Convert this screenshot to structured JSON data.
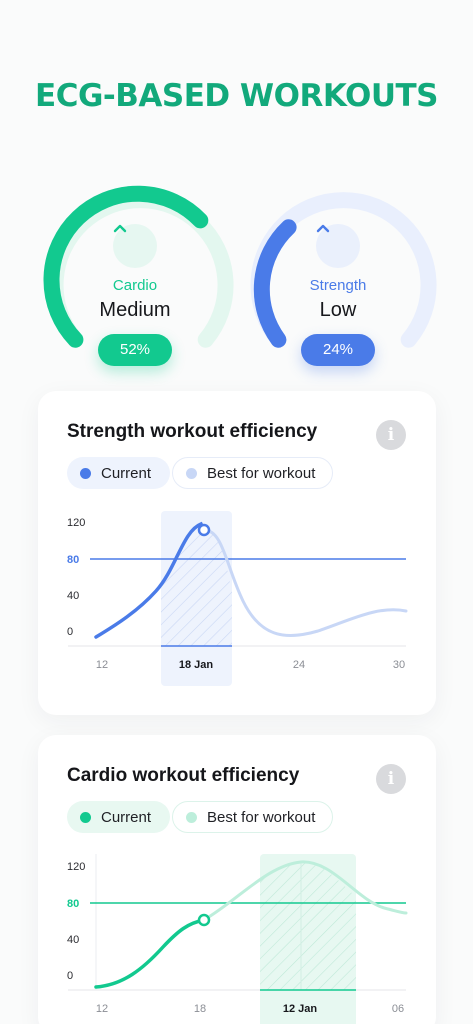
{
  "headline": "ECG-BASED WORKOUTS",
  "gauges": [
    {
      "label": "Cardio",
      "value": "Medium",
      "percent": "52%",
      "color": "#12c98f",
      "track": "#e3f7ef",
      "chip": "#e6f7f1"
    },
    {
      "label": "Strength",
      "value": "Low",
      "percent": "24%",
      "color": "#4a7be8",
      "track": "#e9effd",
      "chip": "#eaf0fc"
    }
  ],
  "strength_card": {
    "title": "Strength workout efficiency",
    "legend": {
      "current": "Current",
      "best": "Best for workout"
    },
    "colors": {
      "current": "#4a7be8",
      "best": "#c8d7f6",
      "band": "#eef3fd",
      "threshold": "#4a7be8"
    },
    "y_ticks": [
      "120",
      "80",
      "40",
      "0"
    ],
    "x_ticks": [
      "12",
      "18 Jan",
      "24",
      "30"
    ],
    "highlighted_tick": "18 Jan"
  },
  "cardio_card": {
    "title": "Cardio workout efficiency",
    "legend": {
      "current": "Current",
      "best": "Best for workout"
    },
    "colors": {
      "current": "#12c98f",
      "best": "#bdeedb",
      "band": "#e7f8f1",
      "threshold": "#12c98f"
    },
    "y_ticks": [
      "120",
      "80",
      "40",
      "0"
    ],
    "x_ticks": [
      "12",
      "18",
      "12 Jan",
      "06"
    ],
    "highlighted_tick": "12 Jan"
  }
}
